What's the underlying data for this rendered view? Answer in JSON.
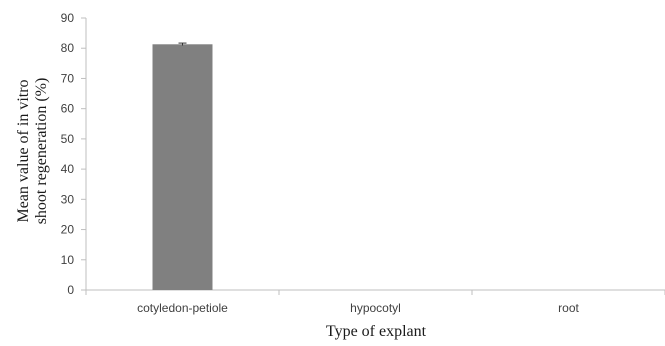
{
  "chart_data": {
    "type": "bar",
    "categories": [
      "cotyledon-petiole",
      "hypocotyl",
      "root"
    ],
    "values": [
      81.3,
      0,
      0
    ],
    "error": [
      0.4,
      0,
      0
    ],
    "xlabel": "Type of explant",
    "ylabel_lines": [
      "Mean value of in vitro",
      "shoot regeneration (%)"
    ],
    "ylim": [
      0,
      90
    ],
    "yticks": [
      0,
      10,
      20,
      30,
      40,
      50,
      60,
      70,
      80,
      90
    ],
    "ytick_labels": [
      "0",
      "10",
      "20",
      "30",
      "40",
      "50",
      "60",
      "70",
      "80",
      "90"
    ],
    "grid": false,
    "legend": "none",
    "bar_color": "#808080",
    "axis_color": "#bfbfbf"
  }
}
